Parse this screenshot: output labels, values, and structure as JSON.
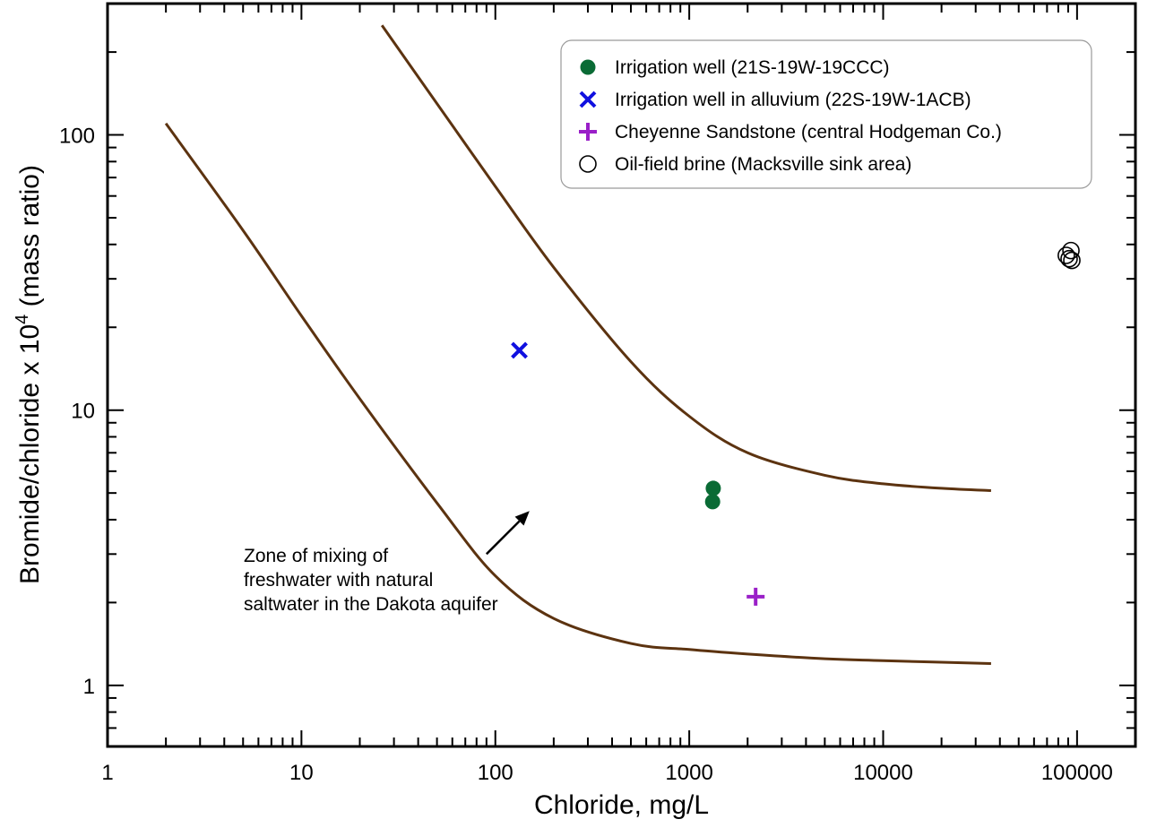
{
  "chart_data": {
    "type": "scatter",
    "xscale": "log",
    "yscale": "log",
    "xlim": [
      1,
      200000
    ],
    "ylim": [
      0.6,
      300
    ],
    "xlabel": "Chloride, mg/L",
    "ylabel_main": "Bromide/chloride x 10",
    "ylabel_sup": "4",
    "ylabel_tail": " (mass ratio)",
    "x_ticks": [
      1,
      10,
      100,
      1000,
      10000,
      100000
    ],
    "x_tick_labels": [
      "1",
      "10",
      "100",
      "1000",
      "10000",
      "100000"
    ],
    "y_ticks": [
      1,
      10,
      100
    ],
    "y_tick_labels": [
      "1",
      "10",
      "100"
    ],
    "grid": false,
    "legend_position": "top-right",
    "series": [
      {
        "name": "Irrigation well (21S-19W-19CCC)",
        "marker": "filled-circle",
        "color": "#0a6b35",
        "points": [
          [
            1330,
            5.2
          ],
          [
            1320,
            4.65
          ]
        ]
      },
      {
        "name": "Irrigation well in alluvium (22S-19W-1ACB)",
        "marker": "x",
        "color": "#1010e0",
        "points": [
          [
            133,
            16.5
          ]
        ]
      },
      {
        "name": "Cheyenne Sandstone (central Hodgeman Co.)",
        "marker": "plus",
        "color": "#9a1fc8",
        "points": [
          [
            2200,
            2.1
          ]
        ]
      },
      {
        "name": "Oil-field brine (Macksville sink area)",
        "marker": "open-circle",
        "color": "#000000",
        "points": [
          [
            93000,
            38
          ],
          [
            88000,
            36.5
          ],
          [
            91000,
            35.5
          ],
          [
            94000,
            35
          ]
        ]
      }
    ],
    "mixing_curves": {
      "color": "#5c3310",
      "curves": [
        {
          "points": [
            [
              2,
              110
            ],
            [
              5,
              45
            ],
            [
              10,
              22
            ],
            [
              20,
              11
            ],
            [
              50,
              4.6
            ],
            [
              100,
              2.5
            ],
            [
              200,
              1.75
            ],
            [
              500,
              1.42
            ],
            [
              1000,
              1.35
            ],
            [
              2000,
              1.3
            ],
            [
              5000,
              1.25
            ],
            [
              10000,
              1.23
            ],
            [
              36000,
              1.2
            ]
          ]
        },
        {
          "points": [
            [
              26,
              250
            ],
            [
              50,
              130
            ],
            [
              100,
              65
            ],
            [
              200,
              33
            ],
            [
              500,
              15
            ],
            [
              1000,
              9.5
            ],
            [
              2000,
              7.0
            ],
            [
              5000,
              5.8
            ],
            [
              10000,
              5.4
            ],
            [
              20000,
              5.2
            ],
            [
              36000,
              5.1
            ]
          ]
        }
      ]
    },
    "annotation": {
      "lines": [
        "Zone of mixing of",
        "freshwater with natural",
        "saltwater in the Dakota aquifer"
      ],
      "arrow_from": [
        90,
        3.0
      ],
      "arrow_to": [
        150,
        4.3
      ]
    }
  }
}
